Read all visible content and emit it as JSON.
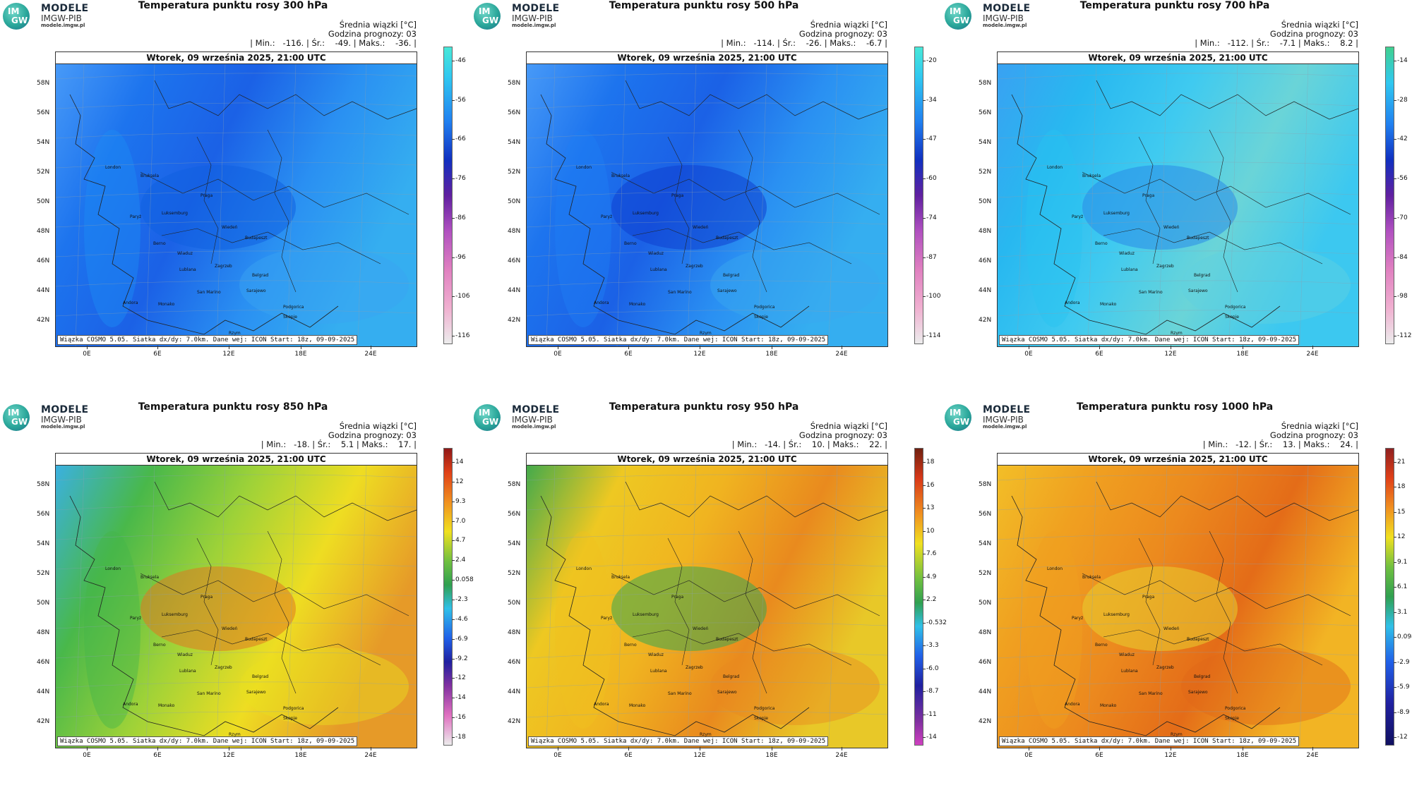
{
  "logo": {
    "im": "IM",
    "gw": "GW",
    "title": "MODELE",
    "org": "IMGW-PIB",
    "url": "modele.imgw.pl"
  },
  "common": {
    "stat_header": "Średnia wiązki [°C]",
    "forecast_hour": "Godzina prognozy: 03",
    "date_line": "Wtorek, 09 września 2025, 21:00 UTC",
    "footer": "Wiązka COSMO 5.05. Siatka dx/dy: 7.0km. Dane wej: ICON Start: 18z, 09-09-2025",
    "lat_labels": [
      "58N",
      "56N",
      "54N",
      "52N",
      "50N",
      "48N",
      "46N",
      "44N",
      "42N"
    ],
    "lon_labels": [
      "0E",
      "6E",
      "12E",
      "18E",
      "24E"
    ],
    "cities": [
      "London",
      "Bruksela",
      "Paryż",
      "Luksemburg",
      "Praga",
      "Wiedeń",
      "Budapeszt",
      "Berno",
      "Wiaduz",
      "Zagrzeb",
      "Lublana",
      "Belgrad",
      "San Marino",
      "Sarajewo",
      "Podgorica",
      "Andora",
      "Monako",
      "Rzym",
      "Skopje"
    ]
  },
  "panels": [
    {
      "title": "Temperatura punktu rosy 300 hPa",
      "stats": "| Min.:   -116. | Śr.:    -49. | Maks.:    -36. |",
      "colorbar": [
        "-46",
        "-56",
        "-66",
        "-76",
        "-86",
        "-96",
        "-106",
        "-116"
      ],
      "palette": "cold",
      "colors": [
        "#1c8cf5",
        "#3aa3f2",
        "#1160e0"
      ]
    },
    {
      "title": "Temperatura punktu rosy 500 hPa",
      "stats": "| Min.:   -114. | Śr.:    -26. | Maks.:    -6.7 |",
      "colorbar": [
        "-20",
        "-34",
        "-47",
        "-60",
        "-74",
        "-87",
        "-100",
        "-114"
      ],
      "palette": "cold",
      "colors": [
        "#1f7ef5",
        "#3aa8f0",
        "#0e3fd0"
      ]
    },
    {
      "title": "Temperatura punktu rosy 700 hPa",
      "stats": "| Min.:   -112. | Śr.:    -7.1 | Maks.:    8.2 |",
      "colorbar": [
        "-14",
        "-28",
        "-42",
        "-56",
        "-70",
        "-84",
        "-98",
        "-112"
      ],
      "palette": "cold2",
      "colors": [
        "#28c4f0",
        "#5fd0e0",
        "#2a8ae8"
      ]
    },
    {
      "title": "Temperatura punktu rosy 850 hPa",
      "stats": "| Min.:   -18. | Śr.:    5.1 | Maks.:    17. |",
      "colorbar": [
        "14",
        "12",
        "9.3",
        "7.0",
        "4.7",
        "2.4",
        "0.058",
        "-2.3",
        "-4.6",
        "-6.9",
        "-9.2",
        "-12",
        "-14",
        "-16",
        "-18"
      ],
      "palette": "warm1",
      "colors": [
        "#44b64a",
        "#e8e020",
        "#e07820"
      ]
    },
    {
      "title": "Temperatura punktu rosy 950 hPa",
      "stats": "| Min.:   -14. | Śr.:    10. | Maks.:    22. |",
      "colorbar": [
        "18",
        "16",
        "13",
        "10",
        "7.6",
        "4.9",
        "2.2",
        "-0.532",
        "-3.3",
        "-6.0",
        "-8.7",
        "-11",
        "-14"
      ],
      "palette": "warm2",
      "colors": [
        "#f0c020",
        "#e88a20",
        "#38a850"
      ]
    },
    {
      "title": "Temperatura punktu rosy 1000 hPa",
      "stats": "| Min.:   -12. | Śr.:    13. | Maks.:    24. |",
      "colorbar": [
        "21",
        "18",
        "15",
        "12",
        "9.1",
        "6.1",
        "3.1",
        "0.098",
        "-2.9",
        "-5.9",
        "-8.9",
        "-12"
      ],
      "palette": "warm3",
      "colors": [
        "#f0a020",
        "#e06818",
        "#e8d030"
      ]
    }
  ]
}
